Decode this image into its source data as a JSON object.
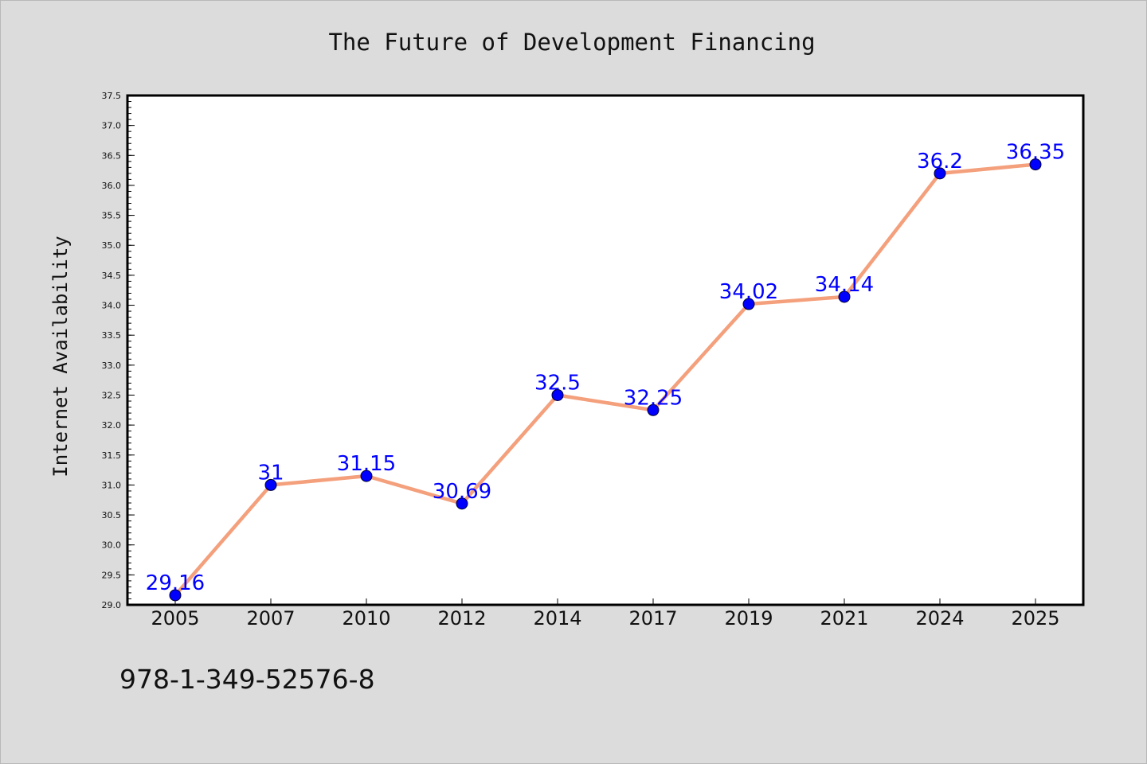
{
  "colors": {
    "background": "#dcdcdc",
    "plot_area": "#ffffff",
    "line": "#f4a07c",
    "marker": "#0000ff",
    "data_label": "#0000ff"
  },
  "chart_data": {
    "type": "line",
    "title": "The Future of Development Financing",
    "xlabel": "",
    "ylabel": "Internet Availability",
    "categories": [
      "2005",
      "2007",
      "2010",
      "2012",
      "2014",
      "2017",
      "2019",
      "2021",
      "2024",
      "2025"
    ],
    "series": [
      {
        "values": [
          29.16,
          31,
          31.15,
          30.69,
          32.5,
          32.25,
          34.02,
          34.14,
          36.2,
          36.35
        ],
        "data_labels": [
          "29.16",
          "31",
          "31.15",
          "30.69",
          "32.5",
          "32.25",
          "34.02",
          "34.14",
          "36.2",
          "36.35"
        ]
      }
    ],
    "ylim": [
      29.0,
      37.5
    ],
    "yticks": [
      "29.0",
      "29.5",
      "30.0",
      "30.5",
      "31.0",
      "31.5",
      "32.0",
      "32.5",
      "33.0",
      "33.5",
      "34.0",
      "34.5",
      "35.0",
      "35.5",
      "36.0",
      "36.5",
      "37.0",
      "37.5"
    ],
    "grid": false,
    "legend": "none",
    "markers": "circle"
  },
  "footnote": "978-1-349-52576-8"
}
